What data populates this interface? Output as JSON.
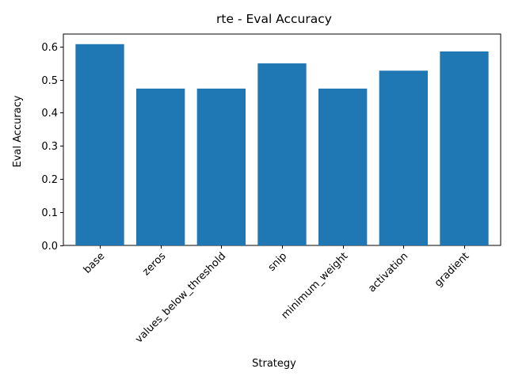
{
  "chart_data": {
    "type": "bar",
    "title": "rte - Eval Accuracy",
    "xlabel": "Strategy",
    "ylabel": "Eval Accuracy",
    "categories": [
      "base",
      "zeros",
      "values_below_threshold",
      "snip",
      "minimum_weight",
      "activation",
      "gradient"
    ],
    "values": [
      0.607,
      0.473,
      0.473,
      0.549,
      0.473,
      0.527,
      0.585
    ],
    "ylim": [
      0,
      0.6375
    ],
    "yticks": [
      0.0,
      0.1,
      0.2,
      0.3,
      0.4,
      0.5,
      0.6
    ],
    "ytick_labels": [
      "0.0",
      "0.1",
      "0.2",
      "0.3",
      "0.4",
      "0.5",
      "0.6"
    ],
    "bar_color": "#1f77b4",
    "grid": false,
    "xtick_rotation_deg": -45
  }
}
